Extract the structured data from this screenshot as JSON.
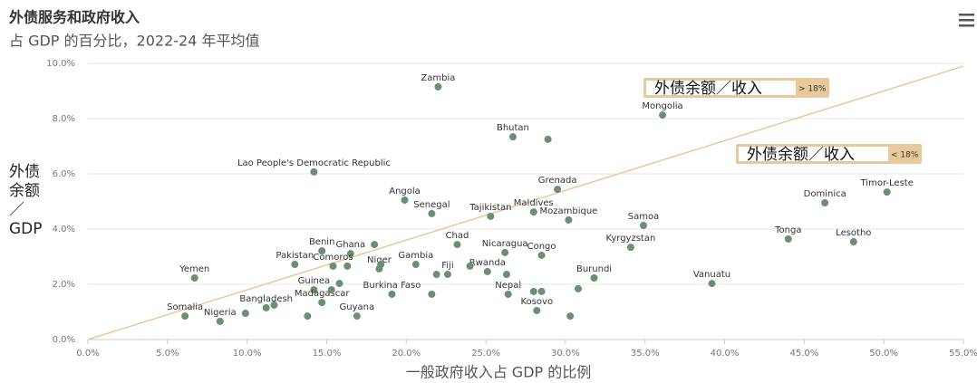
{
  "chart_data": {
    "type": "scatter",
    "title": "外债服务和政府收入",
    "subtitle": "占 GDP 的百分比，2022-24 年平均值",
    "xlabel": "一般政府收入占 GDP 的比例",
    "ylabel": [
      "外债",
      "余额",
      "／",
      "GDP"
    ],
    "color": "#6b8f71",
    "grid": true,
    "xlim": [
      0,
      55
    ],
    "ylim": [
      0,
      10
    ],
    "xticks": [
      {
        "value": 0,
        "label": "0.0%"
      },
      {
        "value": 5,
        "label": "5.0%"
      },
      {
        "value": 10,
        "label": "10.0%"
      },
      {
        "value": 15,
        "label": "15.0%"
      },
      {
        "value": 20,
        "label": "20.0%"
      },
      {
        "value": 25,
        "label": "25.0%"
      },
      {
        "value": 30,
        "label": "30.0%"
      },
      {
        "value": 35,
        "label": "35.0%"
      },
      {
        "value": 40,
        "label": "40.0%"
      },
      {
        "value": 45,
        "label": "45.0%"
      },
      {
        "value": 50,
        "label": "50.0%"
      },
      {
        "value": 55,
        "label": "55.0%"
      }
    ],
    "yticks": [
      {
        "value": 0,
        "label": "0.0%"
      },
      {
        "value": 2,
        "label": "2.0%"
      },
      {
        "value": 4,
        "label": "4.0%"
      },
      {
        "value": 6,
        "label": "6.0%"
      },
      {
        "value": 8,
        "label": "8.0%"
      },
      {
        "value": 10,
        "label": "10.0%"
      }
    ],
    "labels": [
      "Zambia",
      "Mongolia",
      "Bhutan",
      null,
      "Lao People's Democratic Republic",
      "Grenada",
      "Timor-Leste",
      "Dominica",
      "Angola",
      "Senegal",
      "Tajikistan",
      "Maldives",
      "Mozambique",
      "Samoa",
      "Tonga",
      "Lesotho",
      "Chad",
      "Kyrgyzstan",
      "Nicaragua",
      "Congo",
      "Benin",
      "Ghana",
      null,
      "Pakistan",
      "Comoros",
      null,
      "Niger",
      null,
      "Gambia",
      "Fiji",
      null,
      "Rwanda",
      null,
      null,
      "Yemen",
      "Vanuatu",
      "Burundi",
      null,
      "Guinea",
      null,
      "Madagascar",
      null,
      "Burkina Faso",
      null,
      "Nepal",
      null,
      null,
      "Kosovo",
      null,
      "Bangladesh",
      null,
      null,
      "Guyana",
      null,
      "Somalia",
      "Nigeria"
    ],
    "x": [
      22.0,
      36.1,
      26.7,
      28.9,
      14.2,
      29.5,
      50.2,
      46.3,
      19.9,
      21.6,
      25.3,
      28.0,
      30.2,
      34.9,
      44.0,
      48.1,
      23.2,
      34.1,
      26.2,
      28.5,
      14.7,
      16.5,
      18.0,
      13.0,
      15.4,
      16.3,
      18.3,
      18.4,
      20.6,
      22.6,
      21.9,
      25.1,
      24.0,
      26.3,
      6.7,
      39.2,
      31.8,
      30.8,
      14.2,
      15.8,
      14.7,
      15.3,
      19.1,
      21.6,
      26.4,
      28.0,
      28.5,
      28.2,
      30.3,
      11.2,
      11.7,
      9.9,
      16.9,
      13.8,
      6.1,
      8.3
    ],
    "values": [
      9.15,
      8.13,
      7.34,
      7.25,
      6.07,
      5.44,
      5.34,
      4.95,
      5.05,
      4.56,
      4.46,
      4.62,
      4.33,
      4.13,
      3.64,
      3.54,
      3.44,
      3.34,
      3.15,
      3.05,
      3.21,
      3.11,
      3.44,
      2.72,
      2.66,
      2.66,
      2.56,
      2.72,
      2.72,
      2.36,
      2.36,
      2.46,
      2.66,
      2.36,
      2.23,
      2.03,
      2.23,
      1.84,
      1.8,
      2.03,
      1.34,
      1.8,
      1.64,
      1.64,
      1.64,
      1.74,
      1.74,
      1.05,
      0.85,
      1.15,
      1.25,
      0.95,
      0.85,
      0.85,
      0.85,
      0.66
    ],
    "reference_line": {
      "color": "#e8c99b",
      "x": [
        0,
        55
      ],
      "values": [
        0,
        9.9
      ]
    },
    "annotations": [
      {
        "text": "外债余额／收入",
        "tag": "> 18%"
      },
      {
        "text": "外债余额／收入",
        "tag": "< 18%"
      }
    ]
  }
}
